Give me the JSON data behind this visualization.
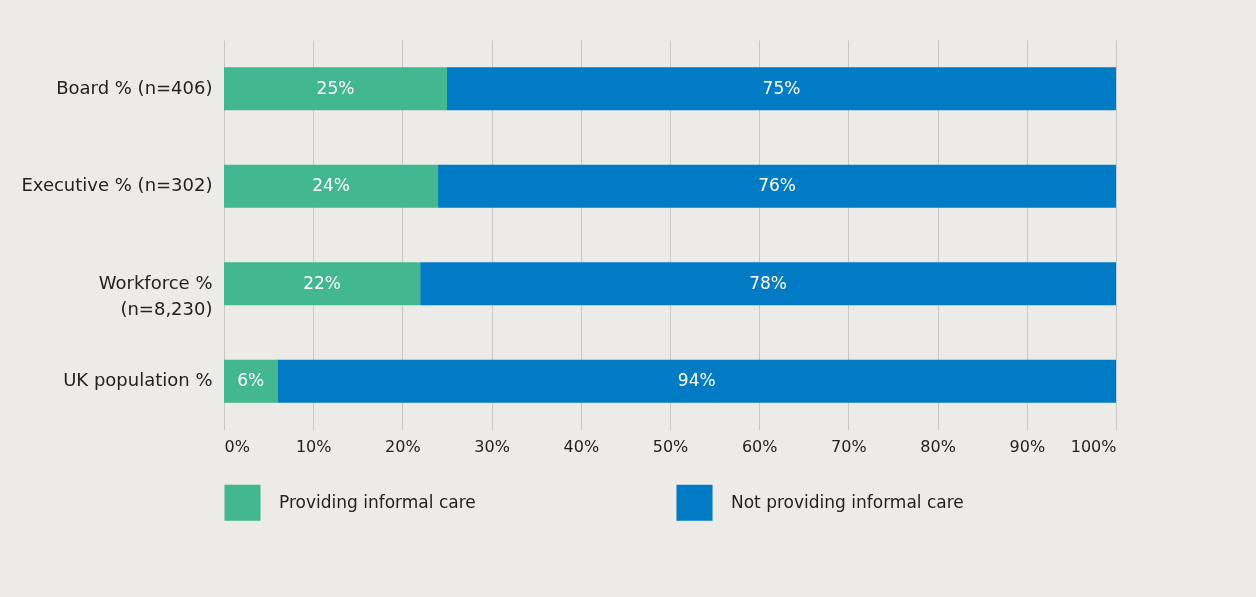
{
  "chart_data": {
    "type": "bar",
    "orientation": "horizontal",
    "stacked": true,
    "categories": [
      "Board % (n=406)",
      "Executive % (n=302)",
      "Workforce % (n=8,230)",
      "UK population %"
    ],
    "series": [
      {
        "name": "Providing informal care",
        "color": "#43b78f",
        "values": [
          25,
          24,
          22,
          6
        ],
        "value_labels": [
          "25%",
          "24%",
          "22%",
          "6%"
        ]
      },
      {
        "name": "Not providing informal care",
        "color": "#007bc4",
        "values": [
          75,
          76,
          78,
          94
        ],
        "value_labels": [
          "75%",
          "76%",
          "78%",
          "94%"
        ]
      }
    ],
    "xlim": [
      0,
      100
    ],
    "xticks": [
      {
        "value": 0,
        "label": "0%"
      },
      {
        "value": 10,
        "label": "10%"
      },
      {
        "value": 20,
        "label": "20%"
      },
      {
        "value": 30,
        "label": "30%"
      },
      {
        "value": 40,
        "label": "40%"
      },
      {
        "value": 50,
        "label": "50%"
      },
      {
        "value": 60,
        "label": "60%"
      },
      {
        "value": 70,
        "label": "70%"
      },
      {
        "value": 80,
        "label": "80%"
      },
      {
        "value": 90,
        "label": "90%"
      },
      {
        "value": 100,
        "label": "100%"
      }
    ],
    "grid": "x",
    "legend": "bottom"
  }
}
